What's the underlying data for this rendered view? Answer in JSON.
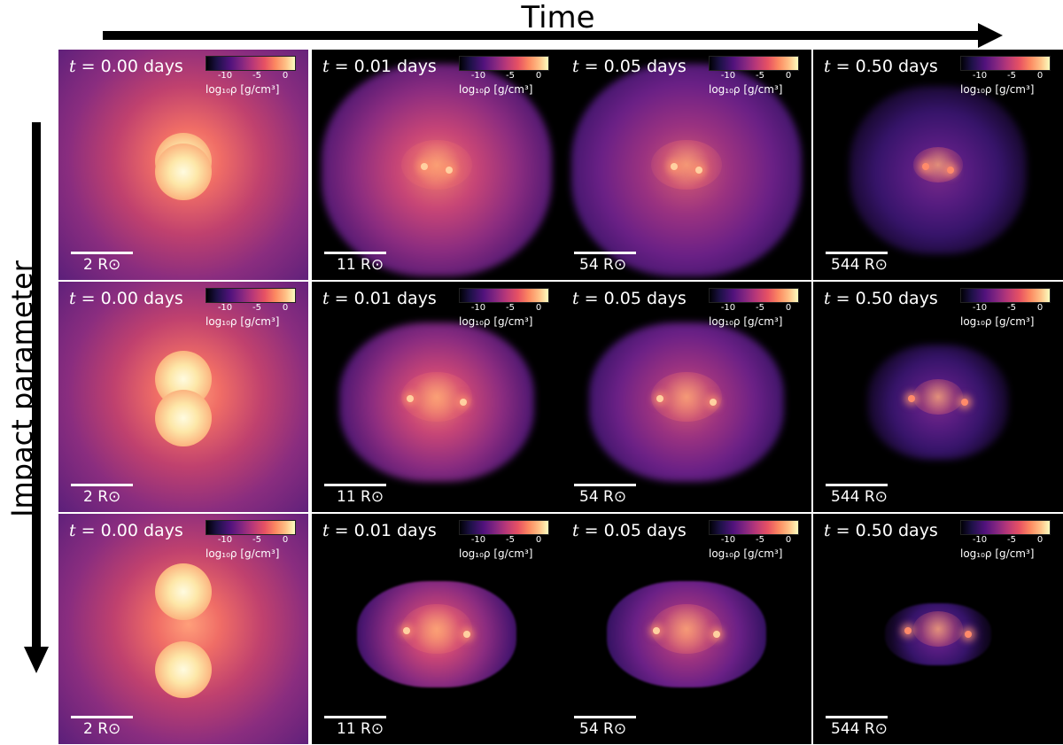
{
  "figure": {
    "top_title": "Time",
    "side_title": "Impact parameter",
    "colorbar": {
      "ticks": [
        "-10",
        "-5",
        "0"
      ],
      "label": "log₁₀ρ [g/cm³]",
      "colormap": "magma"
    },
    "columns": [
      {
        "time": "0.00 days",
        "scale": "2 R⊙"
      },
      {
        "time": "0.01 days",
        "scale": "11 R⊙"
      },
      {
        "time": "0.05 days",
        "scale": "54 R⊙"
      },
      {
        "time": "0.50 days",
        "scale": "544 R⊙"
      }
    ],
    "rows": [
      {
        "impact_parameter_rank": 1
      },
      {
        "impact_parameter_rank": 2
      },
      {
        "impact_parameter_rank": 3
      }
    ],
    "time_prefix": "t",
    "equals": " = "
  }
}
